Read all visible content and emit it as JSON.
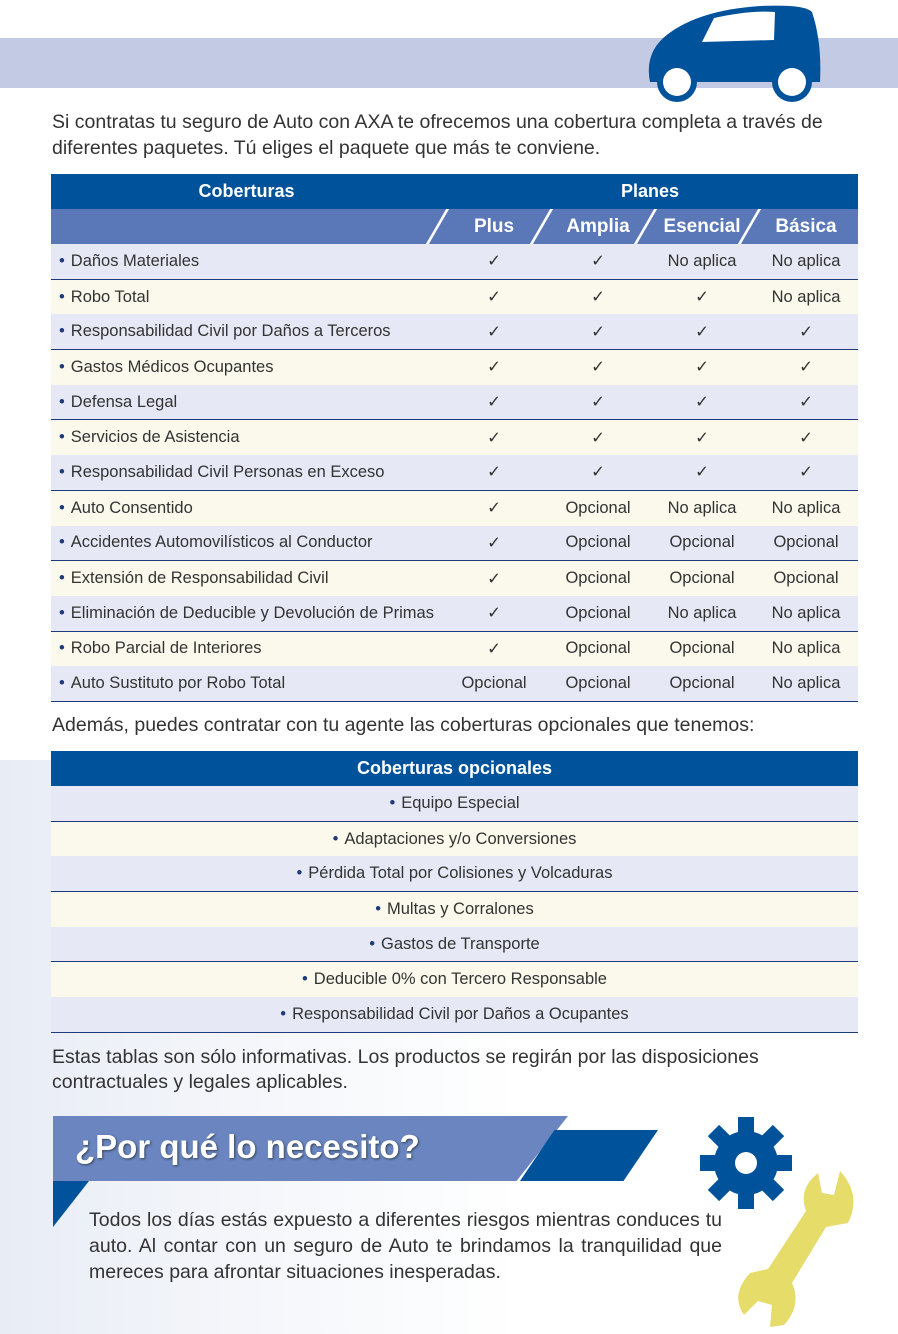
{
  "intro": "Si contratas tu seguro de Auto con AXA te ofrecemos una cobertura completa a través de diferentes paquetes. Tú eliges el paquete que más te conviene.",
  "colors": {
    "primary": "#00529b",
    "secondary": "#5a78b8",
    "band": "#c3cae4",
    "row_blue": "#e6e9f5",
    "row_cream": "#fbf9ec",
    "wrench": "#e5dc6a"
  },
  "table": {
    "header_left": "Coberturas",
    "header_right": "Planes",
    "plans": [
      "Plus",
      "Amplia",
      "Esencial",
      "Básica"
    ],
    "rows": [
      {
        "label": "Daños Materiales",
        "values": [
          "✓",
          "✓",
          "No aplica",
          "No aplica"
        ]
      },
      {
        "label": "Robo Total",
        "values": [
          "✓",
          "✓",
          "✓",
          "No aplica"
        ]
      },
      {
        "label": "Responsabilidad Civil por Daños a Terceros",
        "values": [
          "✓",
          "✓",
          "✓",
          "✓"
        ]
      },
      {
        "label": "Gastos Médicos Ocupantes",
        "values": [
          "✓",
          "✓",
          "✓",
          "✓"
        ]
      },
      {
        "label": "Defensa Legal",
        "values": [
          "✓",
          "✓",
          "✓",
          "✓"
        ]
      },
      {
        "label": "Servicios de Asistencia",
        "values": [
          "✓",
          "✓",
          "✓",
          "✓"
        ]
      },
      {
        "label": "Responsabilidad Civil Personas en Exceso",
        "values": [
          "✓",
          "✓",
          "✓",
          "✓"
        ]
      },
      {
        "label": "Auto Consentido",
        "values": [
          "✓",
          "Opcional",
          "No aplica",
          "No aplica"
        ]
      },
      {
        "label": "Accidentes Automovilísticos al Conductor",
        "values": [
          "✓",
          "Opcional",
          "Opcional",
          "Opcional"
        ]
      },
      {
        "label": "Extensión de Responsabilidad Civil",
        "values": [
          "✓",
          "Opcional",
          "Opcional",
          "Opcional"
        ]
      },
      {
        "label": "Eliminación de Deducible y Devolución de Primas",
        "values": [
          "✓",
          "Opcional",
          "No aplica",
          "No aplica"
        ]
      },
      {
        "label": "Robo Parcial de Interiores",
        "values": [
          "✓",
          "Opcional",
          "Opcional",
          "No aplica"
        ]
      },
      {
        "label": "Auto Sustituto por Robo Total",
        "values": [
          "Opcional",
          "Opcional",
          "Opcional",
          "No aplica"
        ]
      }
    ]
  },
  "optional_intro": "Además, puedes contratar con tu agente las coberturas opcionales que tenemos:",
  "optional": {
    "header": "Coberturas opcionales",
    "items": [
      "Equipo Especial",
      "Adaptaciones y/o Conversiones",
      "Pérdida Total por Colisiones y Volcaduras",
      "Multas y Corralones",
      "Gastos de Transporte",
      "Deducible 0% con Tercero Responsable",
      "Responsabilidad Civil por Daños a Ocupantes"
    ]
  },
  "disclaimer": "Estas tablas son sólo informativas. Los productos se regirán por las disposiciones contractuales y legales aplicables.",
  "why": {
    "title": "¿Por qué lo necesito?",
    "body": "Todos los días estás expuesto a diferentes riesgos mientras conduces tu auto. Al contar con un seguro de Auto te brindamos la tranquilidad que mereces para afrontar situaciones inesperadas."
  },
  "icons": [
    "car-icon",
    "gear-icon",
    "wrench-icon"
  ]
}
